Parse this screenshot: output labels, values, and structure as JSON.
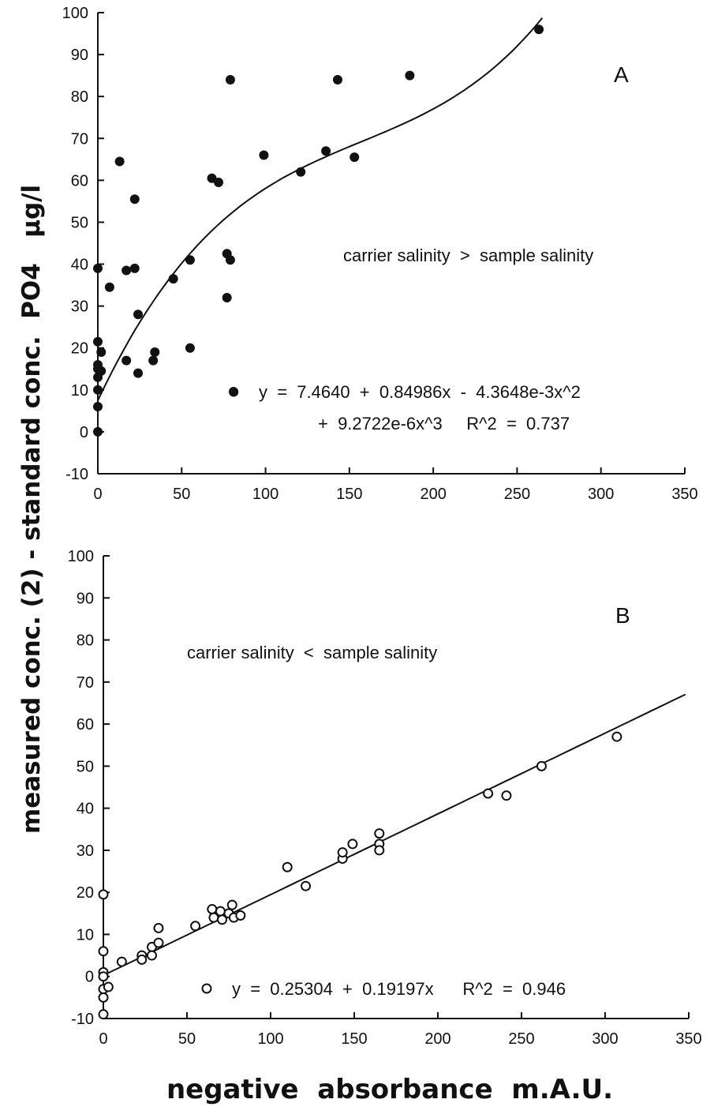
{
  "shared": {
    "ylabel": "measured conc. (2) - standard conc.  PO4   µg/l",
    "xlabel": "negative  absorbance  m.A.U.",
    "colors": {
      "ink": "#111111",
      "background": "#ffffff"
    }
  },
  "chart_data": [
    {
      "type": "scatter",
      "panel": "A",
      "annotation": "carrier salinity  >  sample salinity",
      "equation_line1": "y  =  7.4640  +  0.84986x  -  4.3648e-3x^2",
      "equation_line2": "+  9.2722e-6x^3     R^2  =  0.737",
      "marker": "filled-circle",
      "fit": {
        "type": "cubic",
        "coefficients": [
          7.464,
          0.84986,
          -0.0043648,
          9.2722e-06
        ],
        "x_range": [
          0,
          265
        ],
        "r2": 0.737
      },
      "xlim": [
        0,
        350
      ],
      "ylim": [
        -10,
        100
      ],
      "xticks": [
        0,
        50,
        100,
        150,
        200,
        250,
        300,
        350
      ],
      "yticks": [
        -10,
        0,
        10,
        20,
        30,
        40,
        50,
        60,
        70,
        80,
        90,
        100
      ],
      "grid": false,
      "points": [
        {
          "x": 0,
          "y": 39
        },
        {
          "x": 0,
          "y": 21.5
        },
        {
          "x": 0,
          "y": 16
        },
        {
          "x": 0,
          "y": 15
        },
        {
          "x": 0,
          "y": 13
        },
        {
          "x": 0,
          "y": 10
        },
        {
          "x": 0,
          "y": 6
        },
        {
          "x": 0,
          "y": 0
        },
        {
          "x": 2,
          "y": 19
        },
        {
          "x": 2,
          "y": 14.5
        },
        {
          "x": 7,
          "y": 34.5
        },
        {
          "x": 13,
          "y": 64.5
        },
        {
          "x": 17,
          "y": 38.5
        },
        {
          "x": 17,
          "y": 17
        },
        {
          "x": 22,
          "y": 55.5
        },
        {
          "x": 22,
          "y": 39
        },
        {
          "x": 24,
          "y": 28
        },
        {
          "x": 24,
          "y": 14
        },
        {
          "x": 33,
          "y": 17
        },
        {
          "x": 34,
          "y": 19
        },
        {
          "x": 45,
          "y": 36.5
        },
        {
          "x": 55,
          "y": 41
        },
        {
          "x": 55,
          "y": 20
        },
        {
          "x": 68,
          "y": 60.5
        },
        {
          "x": 72,
          "y": 59.5
        },
        {
          "x": 77,
          "y": 42.5
        },
        {
          "x": 77,
          "y": 32
        },
        {
          "x": 79,
          "y": 84
        },
        {
          "x": 79,
          "y": 41
        },
        {
          "x": 81,
          "y": 9.5
        },
        {
          "x": 99,
          "y": 66
        },
        {
          "x": 121,
          "y": 62
        },
        {
          "x": 136,
          "y": 67
        },
        {
          "x": 143,
          "y": 84
        },
        {
          "x": 153,
          "y": 65.5
        },
        {
          "x": 186,
          "y": 85
        },
        {
          "x": 263,
          "y": 96
        }
      ]
    },
    {
      "type": "scatter",
      "panel": "B",
      "annotation": "carrier salinity  <  sample salinity",
      "equation_line1": "y  =  0.25304  +  0.19197x      R^2  =  0.946",
      "marker": "open-circle",
      "fit": {
        "type": "linear",
        "coefficients": [
          0.25304,
          0.19197
        ],
        "x_range": [
          0,
          348
        ],
        "r2": 0.946
      },
      "xlim": [
        0,
        350
      ],
      "ylim": [
        -10,
        100
      ],
      "xticks": [
        0,
        50,
        100,
        150,
        200,
        250,
        300,
        350
      ],
      "yticks": [
        -10,
        0,
        10,
        20,
        30,
        40,
        50,
        60,
        70,
        80,
        90,
        100
      ],
      "grid": false,
      "points": [
        {
          "x": 0,
          "y": 19.5
        },
        {
          "x": 0,
          "y": 6
        },
        {
          "x": 0,
          "y": 1
        },
        {
          "x": 0,
          "y": 0
        },
        {
          "x": 0,
          "y": -3
        },
        {
          "x": 0,
          "y": -5
        },
        {
          "x": 0,
          "y": -9
        },
        {
          "x": 3,
          "y": -2.5
        },
        {
          "x": 11,
          "y": 3.5
        },
        {
          "x": 23,
          "y": 5
        },
        {
          "x": 23,
          "y": 4
        },
        {
          "x": 29,
          "y": 7
        },
        {
          "x": 29,
          "y": 5
        },
        {
          "x": 33,
          "y": 11.5
        },
        {
          "x": 33,
          "y": 8
        },
        {
          "x": 55,
          "y": 12
        },
        {
          "x": 65,
          "y": 16
        },
        {
          "x": 66,
          "y": 14
        },
        {
          "x": 70,
          "y": 15.5
        },
        {
          "x": 71,
          "y": 13.5
        },
        {
          "x": 75,
          "y": 15
        },
        {
          "x": 77,
          "y": 17
        },
        {
          "x": 78,
          "y": 14
        },
        {
          "x": 82,
          "y": 14.5
        },
        {
          "x": 110,
          "y": 26
        },
        {
          "x": 121,
          "y": 21.5
        },
        {
          "x": 143,
          "y": 28
        },
        {
          "x": 143,
          "y": 29.5
        },
        {
          "x": 149,
          "y": 31.5
        },
        {
          "x": 165,
          "y": 34
        },
        {
          "x": 165,
          "y": 31.5
        },
        {
          "x": 165,
          "y": 30
        },
        {
          "x": 230,
          "y": 43.5
        },
        {
          "x": 241,
          "y": 43
        },
        {
          "x": 262,
          "y": 50
        },
        {
          "x": 307,
          "y": 57
        }
      ]
    }
  ]
}
